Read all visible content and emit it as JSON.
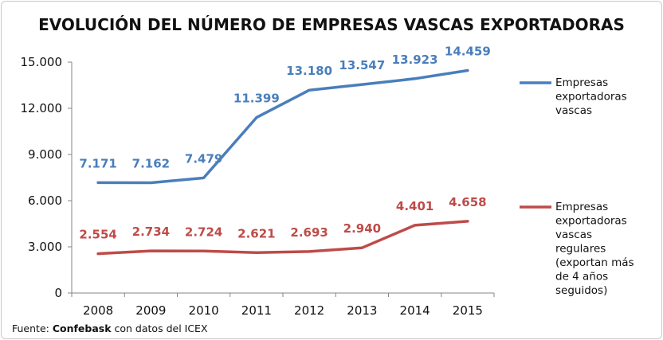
{
  "chart_data": {
    "type": "line",
    "title": "EVOLUCIÓN DEL NÚMERO DE EMPRESAS VASCAS EXPORTADORAS",
    "categories": [
      "2008",
      "2009",
      "2010",
      "2011",
      "2012",
      "2013",
      "2014",
      "2015"
    ],
    "ylim": [
      0,
      15000
    ],
    "yticks": [
      0,
      3000,
      6000,
      9000,
      12000,
      15000
    ],
    "ytick_labels": [
      "0",
      "3.000",
      "6.000",
      "9.000",
      "12.000",
      "15.000"
    ],
    "grid": false,
    "legend_position": "right",
    "series": [
      {
        "name": "Empresas exportadoras vascas",
        "legend_lines": [
          "Empresas",
          "exportadoras",
          "vascas"
        ],
        "color": "#4a7ebb",
        "values": [
          7171,
          7162,
          7479,
          11399,
          13180,
          13547,
          13923,
          14459
        ],
        "labels": [
          "7.171",
          "7.162",
          "7.479",
          "11.399",
          "13.180",
          "13.547",
          "13.923",
          "14.459"
        ]
      },
      {
        "name": "Empresas exportadoras vascas regulares (exportan más de 4 años seguidos)",
        "legend_lines": [
          "Empresas",
          "exportadoras",
          "vascas",
          "regulares",
          "(exportan más",
          "de 4 años",
          "seguidos)"
        ],
        "color": "#be4b48",
        "values": [
          2554,
          2734,
          2724,
          2621,
          2693,
          2940,
          4401,
          4658
        ],
        "labels": [
          "2.554",
          "2.734",
          "2.724",
          "2.621",
          "2.693",
          "2.940",
          "4.401",
          "4.658"
        ]
      }
    ],
    "source": {
      "prefix": "Fuente: ",
      "organization": "Confebask",
      "suffix": " con datos del ICEX"
    }
  }
}
